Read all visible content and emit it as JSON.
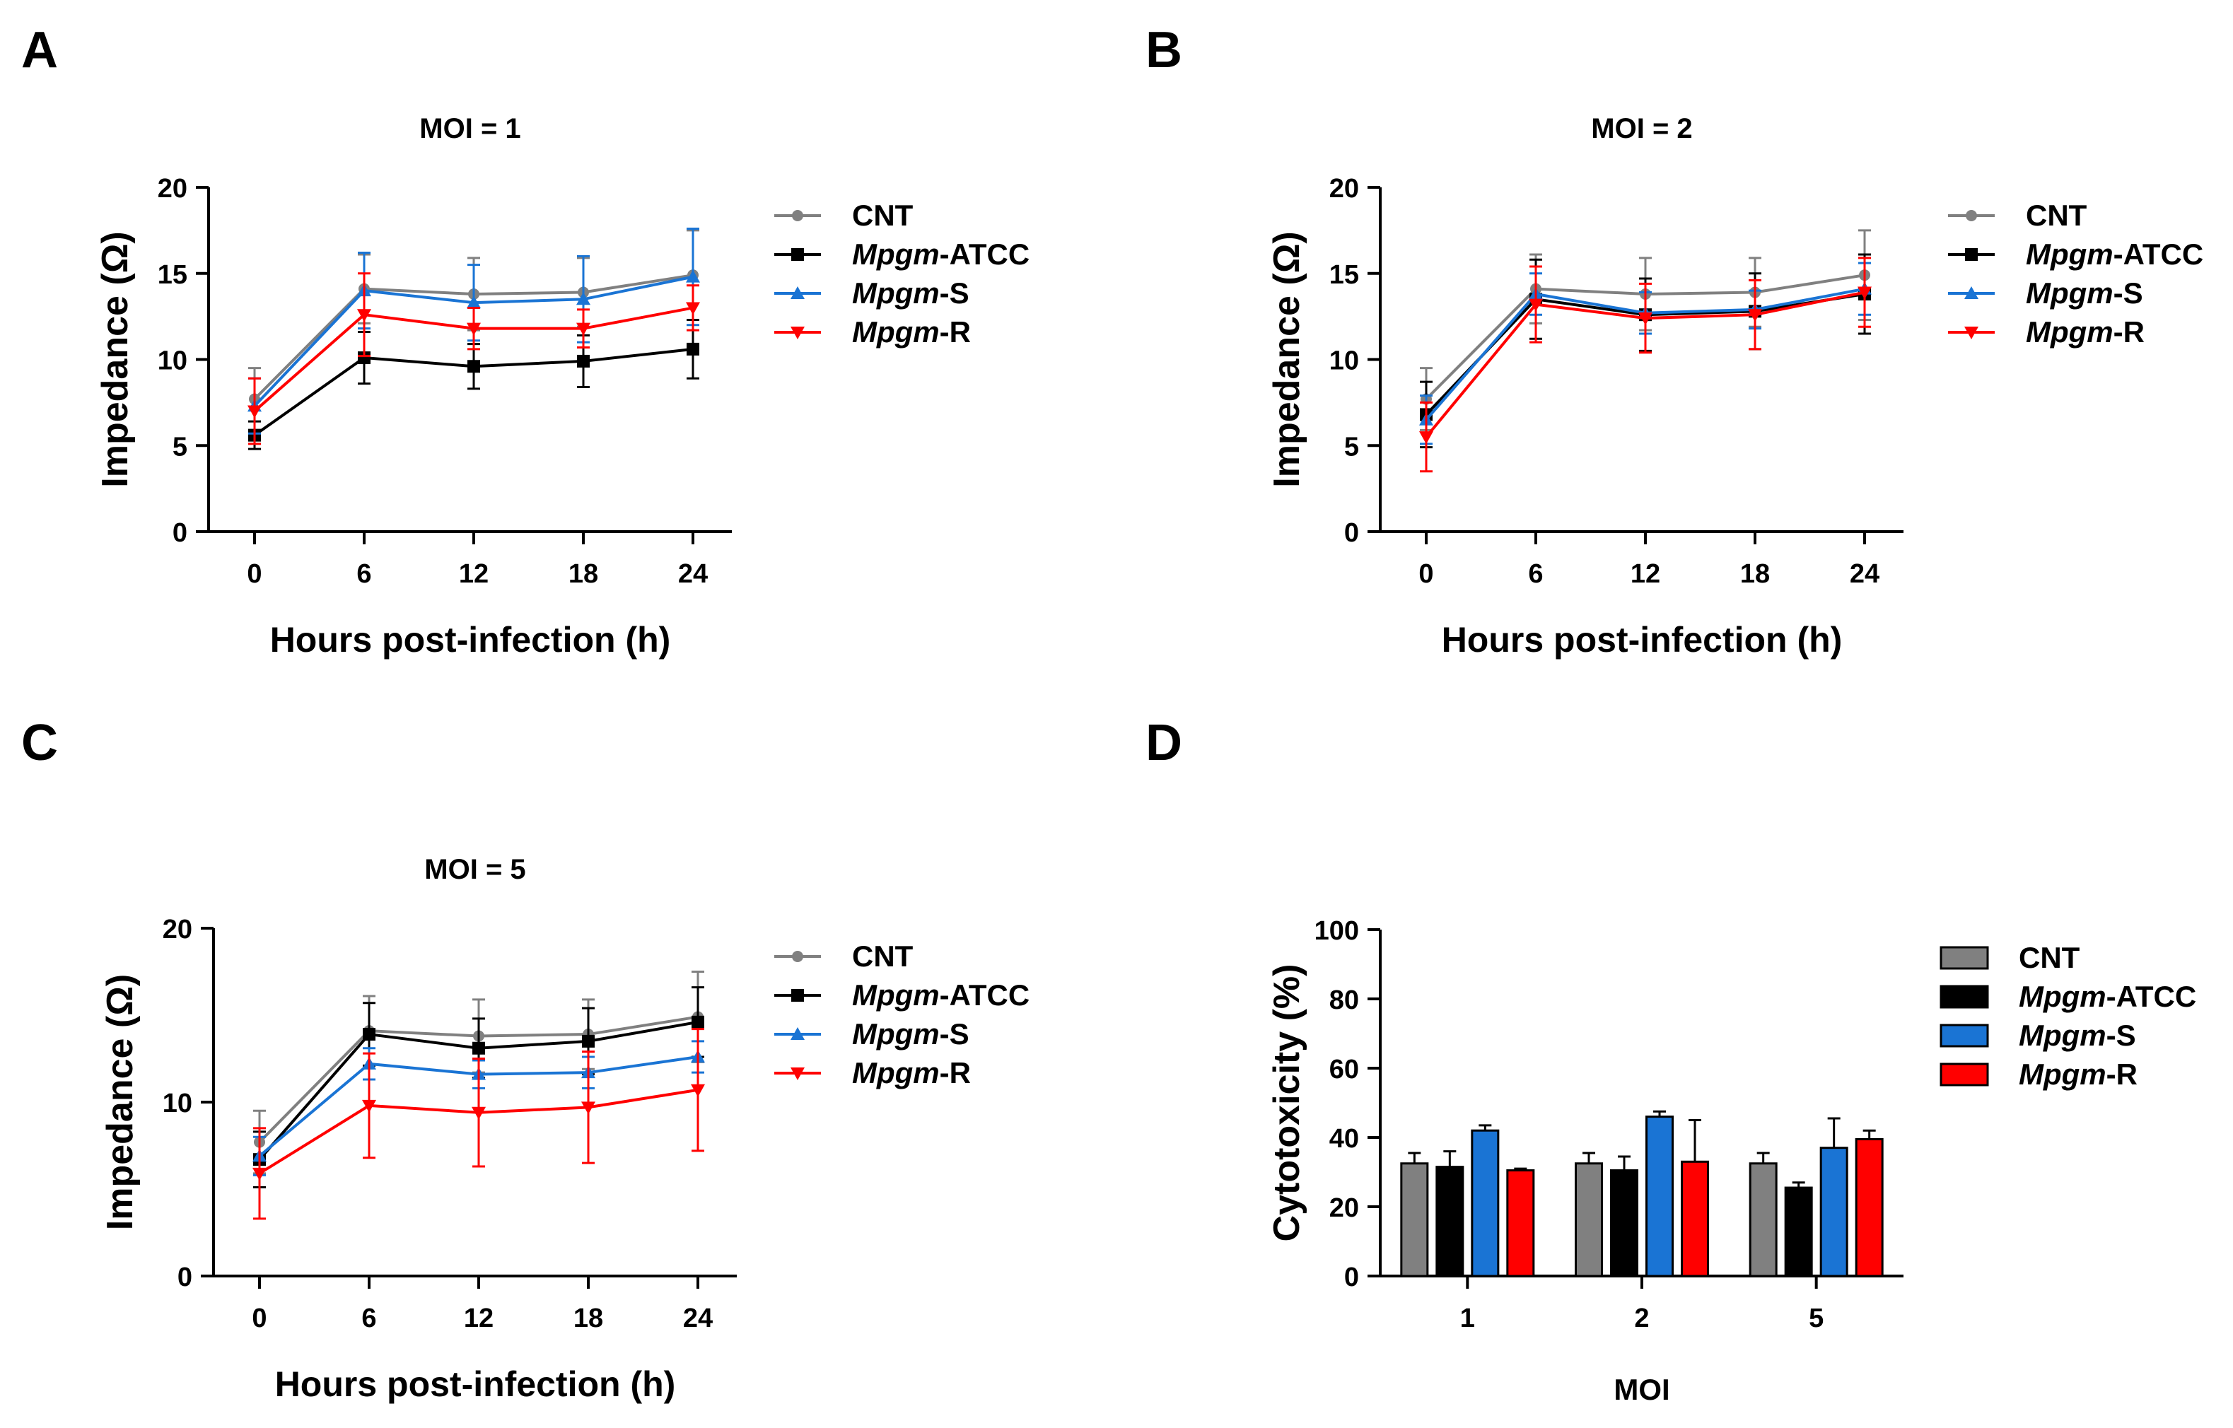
{
  "panel_labels": [
    "A",
    "B",
    "C",
    "D"
  ],
  "colors": {
    "CNT": "#808080",
    "Mpgm-ATCC": "#000000",
    "Mpgm-S": "#1a74d4",
    "Mpgm-R": "#ff0000"
  },
  "chart_data": [
    {
      "panel": "A",
      "type": "line",
      "title": "MOI = 1",
      "xlabel": "Hours post-infection (h)",
      "ylabel": "Impedance (Ω)",
      "x": [
        0,
        6,
        12,
        18,
        24
      ],
      "xticks": [
        "0",
        "6",
        "12",
        "18",
        "24"
      ],
      "yticks": [
        "0",
        "5",
        "10",
        "15",
        "20"
      ],
      "ylim": [
        0,
        20
      ],
      "legend_position": "right",
      "series": [
        {
          "name": "CNT",
          "prefix": "",
          "suffix": "CNT",
          "marker": "circle",
          "values": [
            7.7,
            14.1,
            13.8,
            13.9,
            14.9
          ],
          "errors": [
            1.8,
            2.0,
            2.1,
            2.0,
            2.6
          ]
        },
        {
          "name": "Mpgm-ATCC",
          "prefix": "Mpgm",
          "suffix": "-ATCC",
          "marker": "square",
          "values": [
            5.6,
            10.1,
            9.6,
            9.9,
            10.6
          ],
          "errors": [
            0.8,
            1.5,
            1.3,
            1.5,
            1.7
          ]
        },
        {
          "name": "Mpgm-S",
          "prefix": "Mpgm",
          "suffix": "-S",
          "marker": "triangle-up",
          "values": [
            7.3,
            14.0,
            13.3,
            13.5,
            14.8
          ],
          "errors": [
            1.6,
            2.2,
            2.2,
            2.5,
            2.8
          ]
        },
        {
          "name": "Mpgm-R",
          "prefix": "Mpgm",
          "suffix": "-R",
          "marker": "triangle-down",
          "values": [
            7.0,
            12.6,
            11.8,
            11.8,
            13.0
          ],
          "errors": [
            1.9,
            2.4,
            1.2,
            1.1,
            1.3
          ]
        }
      ]
    },
    {
      "panel": "B",
      "type": "line",
      "title": "MOI = 2",
      "xlabel": "Hours post-infection (h)",
      "ylabel": "Impedance (Ω)",
      "x": [
        0,
        6,
        12,
        18,
        24
      ],
      "xticks": [
        "0",
        "6",
        "12",
        "18",
        "24"
      ],
      "yticks": [
        "0",
        "5",
        "10",
        "15",
        "20"
      ],
      "ylim": [
        0,
        20
      ],
      "legend_position": "right",
      "series": [
        {
          "name": "CNT",
          "prefix": "",
          "suffix": "CNT",
          "marker": "circle",
          "values": [
            7.7,
            14.1,
            13.8,
            13.9,
            14.9
          ],
          "errors": [
            1.8,
            2.0,
            2.1,
            2.0,
            2.6
          ]
        },
        {
          "name": "Mpgm-ATCC",
          "prefix": "Mpgm",
          "suffix": "-ATCC",
          "marker": "square",
          "values": [
            6.8,
            13.5,
            12.6,
            12.8,
            13.8
          ],
          "errors": [
            1.9,
            2.3,
            2.1,
            2.2,
            2.3
          ]
        },
        {
          "name": "Mpgm-S",
          "prefix": "Mpgm",
          "suffix": "-S",
          "marker": "triangle-up",
          "values": [
            6.5,
            13.8,
            12.7,
            12.9,
            14.1
          ],
          "errors": [
            1.4,
            1.2,
            1.2,
            1.1,
            1.5
          ]
        },
        {
          "name": "Mpgm-R",
          "prefix": "Mpgm",
          "suffix": "-R",
          "marker": "triangle-down",
          "values": [
            5.5,
            13.2,
            12.4,
            12.6,
            13.9
          ],
          "errors": [
            2.0,
            2.2,
            2.0,
            2.0,
            2.0
          ]
        }
      ]
    },
    {
      "panel": "C",
      "type": "line",
      "title": "MOI = 5",
      "xlabel": "Hours post-infection (h)",
      "ylabel": "Impedance (Ω)",
      "x": [
        0,
        6,
        12,
        18,
        24
      ],
      "xticks": [
        "0",
        "6",
        "12",
        "18",
        "24"
      ],
      "yticks": [
        "0",
        "10",
        "20"
      ],
      "ylim": [
        0,
        20
      ],
      "legend_position": "right",
      "series": [
        {
          "name": "CNT",
          "prefix": "",
          "suffix": "CNT",
          "marker": "circle",
          "values": [
            7.7,
            14.1,
            13.8,
            13.9,
            14.9
          ],
          "errors": [
            1.8,
            2.0,
            2.1,
            2.0,
            2.6
          ]
        },
        {
          "name": "Mpgm-ATCC",
          "prefix": "Mpgm",
          "suffix": "-ATCC",
          "marker": "square",
          "values": [
            6.7,
            13.9,
            13.1,
            13.5,
            14.6
          ],
          "errors": [
            1.6,
            1.8,
            1.7,
            1.9,
            2.0
          ]
        },
        {
          "name": "Mpgm-S",
          "prefix": "Mpgm",
          "suffix": "-S",
          "marker": "triangle-up",
          "values": [
            6.9,
            12.2,
            11.6,
            11.7,
            12.6
          ],
          "errors": [
            1.1,
            0.9,
            0.8,
            0.9,
            0.9
          ]
        },
        {
          "name": "Mpgm-R",
          "prefix": "Mpgm",
          "suffix": "-R",
          "marker": "triangle-down",
          "values": [
            5.9,
            9.8,
            9.4,
            9.7,
            10.7
          ],
          "errors": [
            2.6,
            3.0,
            3.1,
            3.2,
            3.5
          ]
        }
      ]
    },
    {
      "panel": "D",
      "type": "bar",
      "title": "",
      "xlabel": "MOI",
      "ylabel": "Cytotoxicity (%)",
      "categories": [
        "1",
        "2",
        "5"
      ],
      "yticks": [
        "0",
        "20",
        "40",
        "60",
        "80",
        "100"
      ],
      "ylim": [
        0,
        100
      ],
      "legend_position": "right",
      "series": [
        {
          "name": "CNT",
          "prefix": "",
          "suffix": "CNT",
          "values": [
            32.5,
            32.5,
            32.5
          ],
          "errors": [
            3.0,
            3.0,
            3.0
          ]
        },
        {
          "name": "Mpgm-ATCC",
          "prefix": "Mpgm",
          "suffix": "-ATCC",
          "values": [
            31.5,
            30.5,
            25.5
          ],
          "errors": [
            4.5,
            4.0,
            1.5
          ]
        },
        {
          "name": "Mpgm-S",
          "prefix": "Mpgm",
          "suffix": "-S",
          "values": [
            42.0,
            46.0,
            37.0
          ],
          "errors": [
            1.5,
            1.5,
            8.5
          ]
        },
        {
          "name": "Mpgm-R",
          "prefix": "Mpgm",
          "suffix": "-R",
          "values": [
            30.5,
            33.0,
            39.5
          ],
          "errors": [
            0.5,
            12.0,
            2.5
          ]
        }
      ]
    }
  ]
}
